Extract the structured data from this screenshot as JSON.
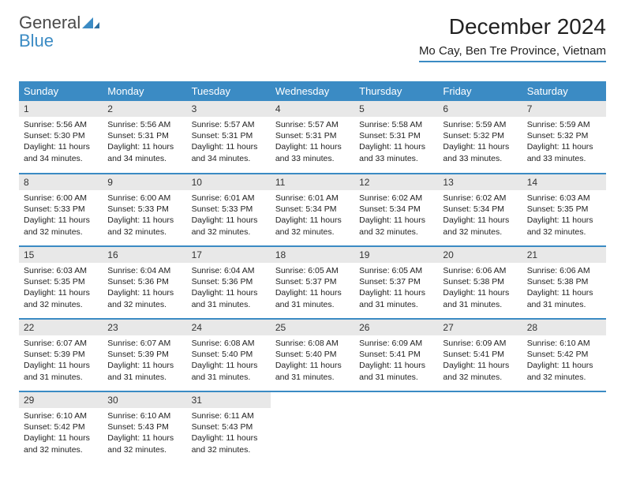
{
  "logo": {
    "word1": "General",
    "word2": "Blue"
  },
  "title": "December 2024",
  "location": "Mo Cay, Ben Tre Province, Vietnam",
  "colors": {
    "accent": "#3b8bc4",
    "header_text": "#ffffff",
    "daynum_bg": "#e8e8e8",
    "body_text": "#222222",
    "logo_gray": "#4a4a4a"
  },
  "weekdays": [
    "Sunday",
    "Monday",
    "Tuesday",
    "Wednesday",
    "Thursday",
    "Friday",
    "Saturday"
  ],
  "days": [
    {
      "n": 1,
      "sunrise": "5:56 AM",
      "sunset": "5:30 PM",
      "daylight": "11 hours and 34 minutes."
    },
    {
      "n": 2,
      "sunrise": "5:56 AM",
      "sunset": "5:31 PM",
      "daylight": "11 hours and 34 minutes."
    },
    {
      "n": 3,
      "sunrise": "5:57 AM",
      "sunset": "5:31 PM",
      "daylight": "11 hours and 34 minutes."
    },
    {
      "n": 4,
      "sunrise": "5:57 AM",
      "sunset": "5:31 PM",
      "daylight": "11 hours and 33 minutes."
    },
    {
      "n": 5,
      "sunrise": "5:58 AM",
      "sunset": "5:31 PM",
      "daylight": "11 hours and 33 minutes."
    },
    {
      "n": 6,
      "sunrise": "5:59 AM",
      "sunset": "5:32 PM",
      "daylight": "11 hours and 33 minutes."
    },
    {
      "n": 7,
      "sunrise": "5:59 AM",
      "sunset": "5:32 PM",
      "daylight": "11 hours and 33 minutes."
    },
    {
      "n": 8,
      "sunrise": "6:00 AM",
      "sunset": "5:33 PM",
      "daylight": "11 hours and 32 minutes."
    },
    {
      "n": 9,
      "sunrise": "6:00 AM",
      "sunset": "5:33 PM",
      "daylight": "11 hours and 32 minutes."
    },
    {
      "n": 10,
      "sunrise": "6:01 AM",
      "sunset": "5:33 PM",
      "daylight": "11 hours and 32 minutes."
    },
    {
      "n": 11,
      "sunrise": "6:01 AM",
      "sunset": "5:34 PM",
      "daylight": "11 hours and 32 minutes."
    },
    {
      "n": 12,
      "sunrise": "6:02 AM",
      "sunset": "5:34 PM",
      "daylight": "11 hours and 32 minutes."
    },
    {
      "n": 13,
      "sunrise": "6:02 AM",
      "sunset": "5:34 PM",
      "daylight": "11 hours and 32 minutes."
    },
    {
      "n": 14,
      "sunrise": "6:03 AM",
      "sunset": "5:35 PM",
      "daylight": "11 hours and 32 minutes."
    },
    {
      "n": 15,
      "sunrise": "6:03 AM",
      "sunset": "5:35 PM",
      "daylight": "11 hours and 32 minutes."
    },
    {
      "n": 16,
      "sunrise": "6:04 AM",
      "sunset": "5:36 PM",
      "daylight": "11 hours and 32 minutes."
    },
    {
      "n": 17,
      "sunrise": "6:04 AM",
      "sunset": "5:36 PM",
      "daylight": "11 hours and 31 minutes."
    },
    {
      "n": 18,
      "sunrise": "6:05 AM",
      "sunset": "5:37 PM",
      "daylight": "11 hours and 31 minutes."
    },
    {
      "n": 19,
      "sunrise": "6:05 AM",
      "sunset": "5:37 PM",
      "daylight": "11 hours and 31 minutes."
    },
    {
      "n": 20,
      "sunrise": "6:06 AM",
      "sunset": "5:38 PM",
      "daylight": "11 hours and 31 minutes."
    },
    {
      "n": 21,
      "sunrise": "6:06 AM",
      "sunset": "5:38 PM",
      "daylight": "11 hours and 31 minutes."
    },
    {
      "n": 22,
      "sunrise": "6:07 AM",
      "sunset": "5:39 PM",
      "daylight": "11 hours and 31 minutes."
    },
    {
      "n": 23,
      "sunrise": "6:07 AM",
      "sunset": "5:39 PM",
      "daylight": "11 hours and 31 minutes."
    },
    {
      "n": 24,
      "sunrise": "6:08 AM",
      "sunset": "5:40 PM",
      "daylight": "11 hours and 31 minutes."
    },
    {
      "n": 25,
      "sunrise": "6:08 AM",
      "sunset": "5:40 PM",
      "daylight": "11 hours and 31 minutes."
    },
    {
      "n": 26,
      "sunrise": "6:09 AM",
      "sunset": "5:41 PM",
      "daylight": "11 hours and 31 minutes."
    },
    {
      "n": 27,
      "sunrise": "6:09 AM",
      "sunset": "5:41 PM",
      "daylight": "11 hours and 32 minutes."
    },
    {
      "n": 28,
      "sunrise": "6:10 AM",
      "sunset": "5:42 PM",
      "daylight": "11 hours and 32 minutes."
    },
    {
      "n": 29,
      "sunrise": "6:10 AM",
      "sunset": "5:42 PM",
      "daylight": "11 hours and 32 minutes."
    },
    {
      "n": 30,
      "sunrise": "6:10 AM",
      "sunset": "5:43 PM",
      "daylight": "11 hours and 32 minutes."
    },
    {
      "n": 31,
      "sunrise": "6:11 AM",
      "sunset": "5:43 PM",
      "daylight": "11 hours and 32 minutes."
    }
  ],
  "labels": {
    "sunrise": "Sunrise:",
    "sunset": "Sunset:",
    "daylight": "Daylight:"
  },
  "layout": {
    "start_weekday": 0,
    "cols": 7,
    "rows": 5
  }
}
